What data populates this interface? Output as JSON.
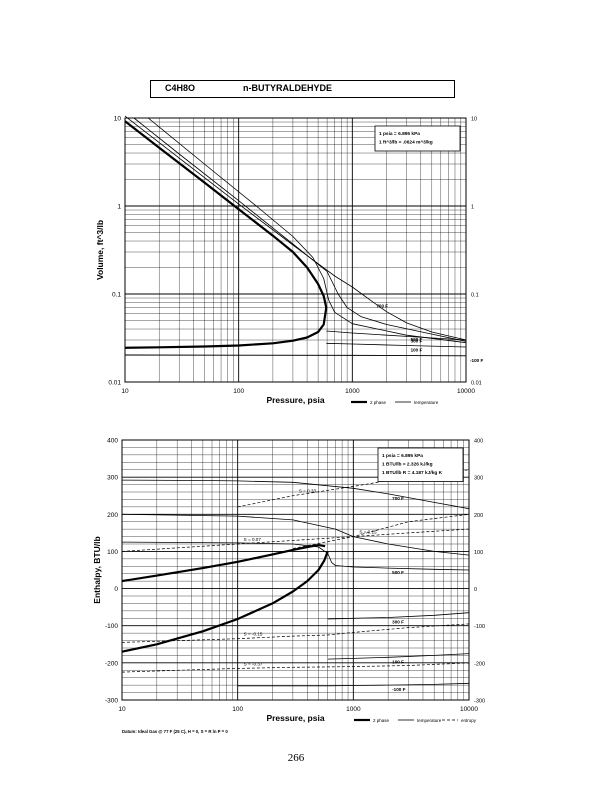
{
  "header": {
    "formula": "C4H8O",
    "name": "n-BUTYRALDEHYDE"
  },
  "page_number": "266",
  "chart_data": [
    {
      "type": "line",
      "title": "",
      "xlabel": "Pressure,  psia",
      "ylabel": "Volume, ft^3/lb",
      "xscale": "log",
      "yscale": "log",
      "xlim": [
        10,
        10000
      ],
      "ylim": [
        0.01,
        10
      ],
      "x_ticks": [
        "10",
        "100",
        "1000",
        "10000"
      ],
      "y_ticks": [
        "0.01",
        "0.1",
        "1",
        "10"
      ],
      "y_ticks_right": [
        "0.01",
        "0.1",
        "1",
        "10"
      ],
      "grid": true,
      "legend_position": "bottom-right",
      "legend": [
        "2 phase",
        "temperature"
      ],
      "info_box": [
        "1 psia  =  6.895 kPa",
        "1 ft^3/lb  =  .0624 m^3/kg"
      ],
      "series": [
        {
          "kind": "2phase",
          "x": [
            10,
            20,
            50,
            100,
            200,
            300,
            400,
            500,
            560,
            590
          ],
          "y": [
            9.2,
            4.6,
            1.85,
            0.92,
            0.46,
            0.3,
            0.2,
            0.13,
            0.095,
            0.07
          ]
        },
        {
          "kind": "2phase",
          "x": [
            10,
            20,
            50,
            100,
            200,
            300,
            400,
            500,
            560,
            590
          ],
          "y": [
            0.0245,
            0.0248,
            0.0253,
            0.026,
            0.0275,
            0.0295,
            0.032,
            0.037,
            0.045,
            0.07
          ]
        },
        {
          "kind": "temperature",
          "label": "700 F",
          "x": [
            10,
            30,
            100,
            300,
            700,
            1000,
            1500,
            2000,
            3000,
            5000,
            10000
          ],
          "y": [
            10.5,
            3.5,
            1.05,
            0.36,
            0.16,
            0.12,
            0.082,
            0.063,
            0.047,
            0.037,
            0.03
          ]
        },
        {
          "kind": "temperature",
          "label": "",
          "x": [
            12,
            30,
            100,
            300,
            600,
            750,
            900,
            1200,
            2000,
            5000,
            10000
          ],
          "y": [
            10,
            3.9,
            1.15,
            0.37,
            0.18,
            0.1,
            0.07,
            0.055,
            0.045,
            0.035,
            0.029
          ]
        },
        {
          "kind": "temperature",
          "label": "500 F",
          "x": [
            16,
            50,
            150,
            300,
            450,
            560,
            620,
            700,
            1000,
            3000,
            10000
          ],
          "y": [
            10,
            3.0,
            0.95,
            0.45,
            0.26,
            0.15,
            0.085,
            0.062,
            0.046,
            0.034,
            0.028
          ]
        },
        {
          "kind": "temperature",
          "label": "300 F",
          "x": [
            590,
            1000,
            3000,
            10000
          ],
          "y": [
            0.038,
            0.036,
            0.033,
            0.03
          ]
        },
        {
          "kind": "temperature",
          "label": "100 F",
          "x": [
            590,
            1000,
            3000,
            10000
          ],
          "y": [
            0.0275,
            0.027,
            0.026,
            0.025
          ]
        },
        {
          "kind": "temperature",
          "label": "-100 F",
          "x": [
            10,
            100,
            1000,
            10000
          ],
          "y": [
            0.0203,
            0.0202,
            0.0201,
            0.0198
          ]
        }
      ]
    },
    {
      "type": "line",
      "title": "",
      "xlabel": "Pressure,  psia",
      "ylabel": "Enthalpy,  BTU/lb",
      "xscale": "log",
      "xlim": [
        10,
        10000
      ],
      "ylim": [
        -300,
        400
      ],
      "x_ticks": [
        "10",
        "100",
        "1000",
        "10000"
      ],
      "y_ticks": [
        "-300",
        "-200",
        "-100",
        "0",
        "100",
        "200",
        "300",
        "400"
      ],
      "y_ticks_right": [
        "-300",
        "-200",
        "-100",
        "0",
        "100",
        "200",
        "300",
        "400"
      ],
      "grid": true,
      "legend_position": "bottom-right",
      "legend": [
        "2 phase",
        "temperature",
        "entropy"
      ],
      "info_box": [
        "1 psia  =  6.895 kPa",
        "1 BTU/lb  =  2.326 kJ/kg",
        "1 BTU/lb R  =  4.187 kJ/kg K"
      ],
      "footnote": "Datum: Ideal Gas @ 77 F (25 C), H = 0,  S = R ln P = 0",
      "series": [
        {
          "kind": "2phase",
          "x": [
            10,
            20,
            50,
            100,
            200,
            300,
            400,
            500,
            570
          ],
          "y": [
            20,
            35,
            55,
            72,
            92,
            104,
            112,
            117,
            114
          ]
        },
        {
          "kind": "2phase",
          "x": [
            10,
            20,
            50,
            100,
            200,
            300,
            400,
            500,
            560,
            600
          ],
          "y": [
            -170,
            -150,
            -115,
            -82,
            -40,
            -8,
            20,
            50,
            75,
            100
          ]
        },
        {
          "kind": "temperature",
          "label": "700 F",
          "x": [
            10,
            50,
            100,
            300,
            1000,
            2000,
            5000,
            10000
          ],
          "y": [
            292,
            291,
            290,
            286,
            270,
            255,
            232,
            215
          ]
        },
        {
          "kind": "temperature",
          "label": "",
          "x": [
            10,
            100,
            300,
            700,
            1000,
            2000,
            5000,
            10000
          ],
          "y": [
            200,
            195,
            185,
            160,
            140,
            120,
            100,
            90
          ]
        },
        {
          "kind": "temperature",
          "label": "500 F",
          "x": [
            10,
            100,
            300,
            500,
            600,
            650,
            700,
            1000,
            2000,
            5000,
            10000
          ],
          "y": [
            125,
            123,
            120,
            112,
            95,
            70,
            62,
            58,
            55,
            52,
            50
          ]
        },
        {
          "kind": "temperature",
          "label": "300 F",
          "x": [
            600,
            1000,
            2000,
            5000,
            10000
          ],
          "y": [
            -82,
            -80,
            -78,
            -72,
            -65
          ]
        },
        {
          "kind": "temperature",
          "label": "100 F",
          "x": [
            600,
            1000,
            2000,
            5000,
            10000
          ],
          "y": [
            -190,
            -188,
            -185,
            -180,
            -175
          ]
        },
        {
          "kind": "temperature",
          "label": "-100 F",
          "x": [
            100,
            600,
            1000,
            2000,
            5000,
            10000
          ],
          "y": [
            -262,
            -262,
            -261,
            -260,
            -258,
            -255
          ]
        },
        {
          "kind": "entropy",
          "label": "S = 0.33",
          "x": [
            100,
            300,
            1000,
            3000,
            10000
          ],
          "y": [
            220,
            250,
            275,
            300,
            320
          ]
        },
        {
          "kind": "entropy",
          "label": "S = 0.15",
          "x": [
            300,
            1000,
            3000,
            10000
          ],
          "y": [
            108,
            140,
            180,
            200
          ]
        },
        {
          "kind": "entropy",
          "label": "S = 0.07",
          "x": [
            10,
            100,
            1000,
            3000,
            10000
          ],
          "y": [
            100,
            120,
            140,
            150,
            160
          ]
        },
        {
          "kind": "entropy",
          "label": "S = -0.15",
          "x": [
            10,
            100,
            300,
            600,
            1000,
            3000,
            10000
          ],
          "y": [
            -145,
            -135,
            -128,
            -125,
            -118,
            -105,
            -95
          ]
        },
        {
          "kind": "entropy",
          "label": "S = -0.37",
          "x": [
            10,
            100,
            300,
            1000,
            3000,
            10000
          ],
          "y": [
            -225,
            -215,
            -212,
            -210,
            -207,
            -200
          ]
        }
      ]
    }
  ]
}
